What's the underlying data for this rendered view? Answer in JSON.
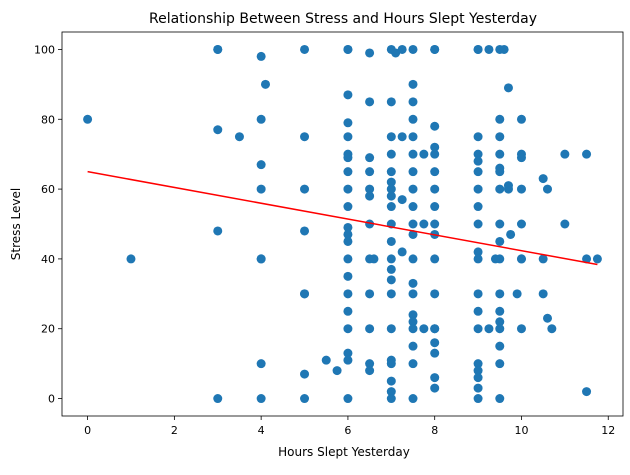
{
  "chart_data": {
    "type": "scatter",
    "title": "Relationship Between Stress and Hours Slept Yesterday",
    "xlabel": "Hours Slept Yesterday",
    "ylabel": "Stress Level",
    "xlim": [
      -0.59,
      12.34
    ],
    "ylim": [
      -5,
      105
    ],
    "xticks": [
      0,
      2,
      4,
      6,
      8,
      10,
      12
    ],
    "yticks": [
      0,
      20,
      40,
      60,
      80,
      100
    ],
    "grid": false,
    "point_color": "#1f77b4",
    "trend_color": "#ff0000",
    "trend_line": {
      "x": [
        0,
        11.75
      ],
      "y": [
        65,
        38.4
      ]
    },
    "points": [
      [
        0,
        80
      ],
      [
        1,
        40
      ],
      [
        3,
        100
      ],
      [
        3,
        100
      ],
      [
        3,
        77
      ],
      [
        3,
        48
      ],
      [
        3,
        0
      ],
      [
        3.5,
        75
      ],
      [
        4,
        98
      ],
      [
        4.1,
        90
      ],
      [
        4,
        80
      ],
      [
        4,
        67
      ],
      [
        4,
        60
      ],
      [
        4,
        40
      ],
      [
        4,
        40
      ],
      [
        4,
        10
      ],
      [
        4,
        0
      ],
      [
        5,
        100
      ],
      [
        5,
        75
      ],
      [
        5,
        60
      ],
      [
        5,
        48
      ],
      [
        5,
        30
      ],
      [
        5,
        30
      ],
      [
        5,
        7
      ],
      [
        5,
        0
      ],
      [
        5.5,
        11
      ],
      [
        5.75,
        8
      ],
      [
        6,
        100
      ],
      [
        6,
        100
      ],
      [
        6,
        87
      ],
      [
        6,
        79
      ],
      [
        6,
        75
      ],
      [
        6,
        70
      ],
      [
        6,
        69
      ],
      [
        6,
        65
      ],
      [
        6,
        60
      ],
      [
        6,
        55
      ],
      [
        6,
        49
      ],
      [
        6,
        47
      ],
      [
        6,
        45
      ],
      [
        6,
        40
      ],
      [
        6,
        35
      ],
      [
        6,
        30
      ],
      [
        6,
        25
      ],
      [
        6,
        20
      ],
      [
        6,
        13
      ],
      [
        6,
        11
      ],
      [
        6,
        0
      ],
      [
        6.5,
        99
      ],
      [
        6.5,
        85
      ],
      [
        6.5,
        69
      ],
      [
        6.5,
        65
      ],
      [
        6.5,
        60
      ],
      [
        6.5,
        58
      ],
      [
        6.5,
        50
      ],
      [
        6.5,
        40
      ],
      [
        6.5,
        30
      ],
      [
        6.5,
        20
      ],
      [
        6.5,
        10
      ],
      [
        6.5,
        8
      ],
      [
        6.6,
        40
      ],
      [
        7,
        100
      ],
      [
        7.1,
        99
      ],
      [
        7,
        85
      ],
      [
        7,
        75
      ],
      [
        7,
        70
      ],
      [
        7,
        65
      ],
      [
        7,
        62
      ],
      [
        7,
        60
      ],
      [
        7,
        58
      ],
      [
        7,
        55
      ],
      [
        7,
        50
      ],
      [
        7,
        45
      ],
      [
        7,
        40
      ],
      [
        7,
        37
      ],
      [
        7,
        34
      ],
      [
        7,
        30
      ],
      [
        7,
        20
      ],
      [
        7,
        11
      ],
      [
        7,
        10
      ],
      [
        7,
        5
      ],
      [
        7,
        2
      ],
      [
        7,
        0
      ],
      [
        7.25,
        100
      ],
      [
        7.25,
        75
      ],
      [
        7.25,
        57
      ],
      [
        7.25,
        42
      ],
      [
        7.5,
        100
      ],
      [
        7.5,
        90
      ],
      [
        7.5,
        85
      ],
      [
        7.5,
        80
      ],
      [
        7.5,
        75
      ],
      [
        7.5,
        70
      ],
      [
        7.5,
        65
      ],
      [
        7.5,
        60
      ],
      [
        7.5,
        55
      ],
      [
        7.5,
        50
      ],
      [
        7.5,
        47
      ],
      [
        7.5,
        40
      ],
      [
        7.5,
        33
      ],
      [
        7.5,
        30
      ],
      [
        7.5,
        24
      ],
      [
        7.5,
        22
      ],
      [
        7.5,
        20
      ],
      [
        7.5,
        15
      ],
      [
        7.5,
        10
      ],
      [
        7.5,
        0
      ],
      [
        7.75,
        70
      ],
      [
        7.75,
        50
      ],
      [
        7.75,
        20
      ],
      [
        8,
        100
      ],
      [
        8,
        100
      ],
      [
        8,
        78
      ],
      [
        8,
        72
      ],
      [
        8,
        70
      ],
      [
        8,
        65
      ],
      [
        8,
        60
      ],
      [
        8,
        55
      ],
      [
        8,
        50
      ],
      [
        8,
        47
      ],
      [
        8,
        40
      ],
      [
        8,
        30
      ],
      [
        8,
        20
      ],
      [
        8,
        20
      ],
      [
        8,
        16
      ],
      [
        8,
        13
      ],
      [
        8,
        6
      ],
      [
        8,
        3
      ],
      [
        9,
        100
      ],
      [
        9,
        100
      ],
      [
        9,
        75
      ],
      [
        9,
        70
      ],
      [
        9,
        68
      ],
      [
        9,
        65
      ],
      [
        9,
        60
      ],
      [
        9,
        55
      ],
      [
        9,
        50
      ],
      [
        9,
        42
      ],
      [
        9,
        40
      ],
      [
        9,
        30
      ],
      [
        9,
        25
      ],
      [
        9,
        20
      ],
      [
        9,
        10
      ],
      [
        9,
        8
      ],
      [
        9,
        6
      ],
      [
        9,
        3
      ],
      [
        9,
        0
      ],
      [
        9.25,
        100
      ],
      [
        9.25,
        20
      ],
      [
        9.5,
        100
      ],
      [
        9.6,
        100
      ],
      [
        9.5,
        80
      ],
      [
        9.5,
        75
      ],
      [
        9.5,
        70
      ],
      [
        9.5,
        66
      ],
      [
        9.5,
        65
      ],
      [
        9.5,
        60
      ],
      [
        9.5,
        50
      ],
      [
        9.5,
        45
      ],
      [
        9.5,
        40
      ],
      [
        9.4,
        40
      ],
      [
        9.5,
        30
      ],
      [
        9.5,
        25
      ],
      [
        9.5,
        22
      ],
      [
        9.5,
        20
      ],
      [
        9.5,
        15
      ],
      [
        9.5,
        10
      ],
      [
        9.5,
        0
      ],
      [
        9.7,
        89
      ],
      [
        9.7,
        61
      ],
      [
        9.7,
        60
      ],
      [
        9.75,
        47
      ],
      [
        10,
        80
      ],
      [
        10,
        70
      ],
      [
        10,
        69
      ],
      [
        10,
        60
      ],
      [
        10,
        50
      ],
      [
        10,
        40
      ],
      [
        10,
        40
      ],
      [
        9.9,
        30
      ],
      [
        10,
        20
      ],
      [
        10.5,
        63
      ],
      [
        10.5,
        40
      ],
      [
        10.5,
        30
      ],
      [
        10.6,
        60
      ],
      [
        10.6,
        23
      ],
      [
        10.7,
        20
      ],
      [
        11,
        70
      ],
      [
        11,
        50
      ],
      [
        11.5,
        70
      ],
      [
        11.5,
        40
      ],
      [
        11.75,
        40
      ],
      [
        11.5,
        2
      ]
    ]
  }
}
